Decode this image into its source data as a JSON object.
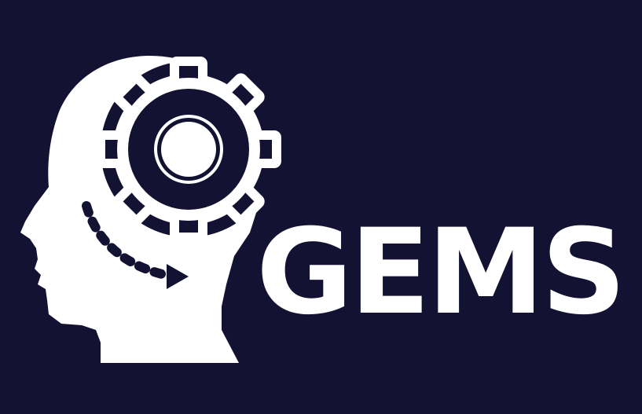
{
  "logo": {
    "wordmark": "GEMS",
    "icon": "head-with-gear-icon",
    "colors": {
      "background": "#141233",
      "foreground": "#ffffff"
    }
  }
}
